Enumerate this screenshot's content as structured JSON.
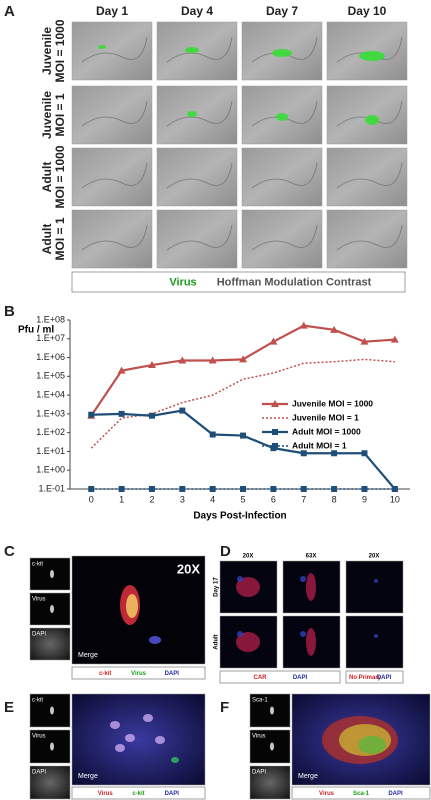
{
  "panel_labels": [
    "A",
    "B",
    "C",
    "D",
    "E",
    "F"
  ],
  "panel_a": {
    "columns": [
      "Day 1",
      "Day 4",
      "Day 7",
      "Day 10"
    ],
    "rows": [
      [
        "Juvenile",
        "MOI = 1000"
      ],
      [
        "Juvenile",
        "MOI = 1"
      ],
      [
        "Adult",
        "MOI = 1000"
      ],
      [
        "Adult",
        "MOI = 1"
      ]
    ],
    "legend": [
      {
        "text": "Virus",
        "color": "#1a9a1a"
      },
      {
        "text": "Hoffman Modulation Contrast",
        "color": "#555555"
      }
    ]
  },
  "chart_data": {
    "type": "line",
    "y_label": "Pfu / ml",
    "x_label": "Days Post-Infection",
    "x": [
      0,
      1,
      2,
      3,
      4,
      5,
      6,
      7,
      8,
      9,
      10
    ],
    "xlim": [
      -0.7,
      10.5
    ],
    "xticks": [
      0,
      1,
      2,
      3,
      4,
      5,
      6,
      7,
      8,
      9,
      10
    ],
    "ylim": [
      0.1,
      100000000
    ],
    "log_y": true,
    "grid": false,
    "legend_position": "right",
    "yticks": [
      {
        "value": 100000000,
        "label": "1.E+08"
      },
      {
        "value": 10000000,
        "label": "1.E+07"
      },
      {
        "value": 1000000,
        "label": "1.E+06"
      },
      {
        "value": 100000,
        "label": "1.E+05"
      },
      {
        "value": 10000,
        "label": "1.E+04"
      },
      {
        "value": 1000,
        "label": "1.E+03"
      },
      {
        "value": 100,
        "label": "1.E+02"
      },
      {
        "value": 10,
        "label": "1.E+01"
      },
      {
        "value": 1,
        "label": "1.E+00"
      },
      {
        "value": 0.1,
        "label": "1.E-01"
      }
    ],
    "series": [
      {
        "name": "Juvenile  MOI = 1000",
        "color": "#c0504d",
        "line": "solid",
        "marker": "triangle",
        "values": [
          800,
          200000,
          400000,
          700000,
          700000,
          800000,
          7000000,
          50000000,
          30000000,
          7000000,
          9000000
        ]
      },
      {
        "name": "Juvenile  MOI = 1",
        "color": "#c0504d",
        "line": "dotted",
        "marker": "none",
        "values": [
          15,
          600,
          1000,
          4000,
          10000,
          70000,
          150000,
          500000,
          600000,
          800000,
          600000
        ]
      },
      {
        "name": "Adult  MOI = 1000",
        "color": "#1f4e79",
        "line": "solid",
        "marker": "square",
        "values": [
          900,
          1000,
          800,
          1500,
          80,
          70,
          15,
          8,
          8,
          8,
          0.1
        ]
      },
      {
        "name": "Adult  MOI = 1",
        "color": "#1f4e79",
        "line": "dotted",
        "marker": "square",
        "values": [
          0.1,
          0.1,
          0.1,
          0.1,
          0.1,
          0.1,
          0.1,
          0.1,
          0.1,
          0.1,
          0.1
        ]
      }
    ]
  },
  "panel_c": {
    "channels": [
      "c-kit",
      "Virus",
      "DAPI"
    ],
    "magnification": "20X",
    "merge": "Merge",
    "legend": [
      {
        "text": "c-kit",
        "color": "#d42020"
      },
      {
        "text": "Virus",
        "color": "#1a9a1a"
      },
      {
        "text": "DAPI",
        "color": "#1f2f9f"
      }
    ]
  },
  "panel_d": {
    "columns": [
      "20X",
      "63X",
      "20X"
    ],
    "rows": [
      "Day 17",
      "Adult"
    ],
    "legends": [
      [
        {
          "text": "CAR",
          "color": "#d42020"
        },
        {
          "text": "DAPI",
          "color": "#1f2f9f"
        }
      ],
      [
        {
          "text": "No Primary",
          "color": "#d42020"
        },
        {
          "text": "DAPI",
          "color": "#1f2f9f"
        }
      ]
    ]
  },
  "panel_e": {
    "channels": [
      "c-kit",
      "Virus",
      "DAPI"
    ],
    "merge": "Merge",
    "legend": [
      {
        "text": "Virus",
        "color": "#d42020"
      },
      {
        "text": "c-kit",
        "color": "#1a9a1a"
      },
      {
        "text": "DAPI",
        "color": "#1f2f9f"
      }
    ]
  },
  "panel_f": {
    "channels": [
      "Sca-1",
      "Virus",
      "DAPI"
    ],
    "merge": "Merge",
    "legend": [
      {
        "text": "Virus",
        "color": "#d42020"
      },
      {
        "text": "Sca-1",
        "color": "#1a9a1a"
      },
      {
        "text": "DAPI",
        "color": "#1f2f9f"
      }
    ]
  }
}
